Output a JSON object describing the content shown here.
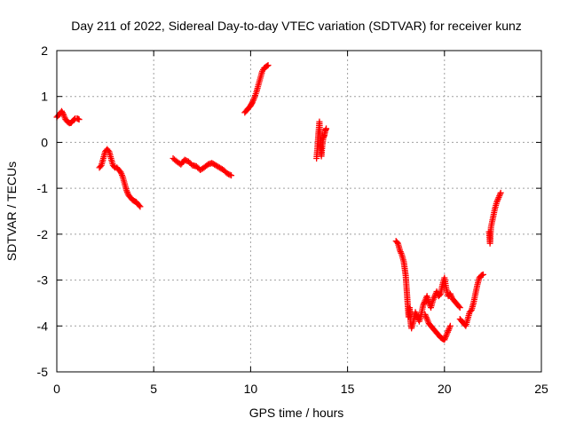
{
  "chart_data": {
    "type": "scatter",
    "title": "Day 211 of 2022, Sidereal Day-to-day VTEC variation (SDTVAR) for receiver kunz",
    "xlabel": "GPS time / hours",
    "ylabel": "SDTVAR / TECUs",
    "xlim": [
      0,
      25
    ],
    "ylim": [
      -5,
      2
    ],
    "xticks": [
      "0",
      "5",
      "10",
      "15",
      "20",
      "25"
    ],
    "yticks": [
      "-5",
      "-4",
      "-3",
      "-2",
      "-1",
      "0",
      "1",
      "2"
    ],
    "grid": true,
    "legend": "none",
    "marker": "plus",
    "color": "#ff0000",
    "segments": [
      [
        [
          0.0,
          0.55
        ],
        [
          0.15,
          0.62
        ],
        [
          0.25,
          0.68
        ],
        [
          0.35,
          0.6
        ],
        [
          0.45,
          0.5
        ],
        [
          0.55,
          0.45
        ],
        [
          0.65,
          0.42
        ],
        [
          0.75,
          0.43
        ],
        [
          0.85,
          0.48
        ],
        [
          0.95,
          0.52
        ],
        [
          1.05,
          0.52
        ],
        [
          1.15,
          0.5
        ]
      ],
      [
        [
          2.2,
          -0.55
        ],
        [
          2.3,
          -0.5
        ],
        [
          2.4,
          -0.35
        ],
        [
          2.5,
          -0.2
        ],
        [
          2.6,
          -0.15
        ],
        [
          2.7,
          -0.2
        ],
        [
          2.8,
          -0.35
        ],
        [
          2.9,
          -0.5
        ],
        [
          3.0,
          -0.55
        ],
        [
          3.1,
          -0.55
        ],
        [
          3.2,
          -0.6
        ],
        [
          3.3,
          -0.65
        ],
        [
          3.4,
          -0.75
        ],
        [
          3.5,
          -0.9
        ],
        [
          3.6,
          -1.05
        ],
        [
          3.7,
          -1.15
        ],
        [
          3.8,
          -1.2
        ],
        [
          3.9,
          -1.25
        ],
        [
          4.0,
          -1.28
        ],
        [
          4.1,
          -1.3
        ],
        [
          4.2,
          -1.35
        ],
        [
          4.3,
          -1.4
        ]
      ],
      [
        [
          6.0,
          -0.35
        ],
        [
          6.2,
          -0.42
        ],
        [
          6.4,
          -0.48
        ],
        [
          6.6,
          -0.38
        ],
        [
          6.8,
          -0.42
        ],
        [
          7.0,
          -0.5
        ],
        [
          7.2,
          -0.52
        ],
        [
          7.4,
          -0.6
        ],
        [
          7.6,
          -0.55
        ],
        [
          7.8,
          -0.48
        ],
        [
          8.0,
          -0.45
        ],
        [
          8.2,
          -0.5
        ],
        [
          8.4,
          -0.55
        ],
        [
          8.6,
          -0.6
        ],
        [
          8.8,
          -0.68
        ],
        [
          9.0,
          -0.72
        ]
      ],
      [
        [
          9.7,
          0.65
        ],
        [
          9.8,
          0.7
        ],
        [
          9.9,
          0.75
        ],
        [
          10.0,
          0.8
        ],
        [
          10.1,
          0.88
        ],
        [
          10.2,
          0.98
        ],
        [
          10.3,
          1.1
        ],
        [
          10.4,
          1.25
        ],
        [
          10.5,
          1.4
        ],
        [
          10.6,
          1.55
        ],
        [
          10.7,
          1.62
        ],
        [
          10.8,
          1.65
        ],
        [
          10.9,
          1.68
        ]
      ],
      [
        [
          13.4,
          -0.35
        ],
        [
          13.45,
          -0.1
        ],
        [
          13.5,
          0.2
        ],
        [
          13.55,
          0.45
        ],
        [
          13.6,
          0.0
        ],
        [
          13.65,
          -0.3
        ],
        [
          13.7,
          -0.05
        ],
        [
          13.75,
          0.1
        ],
        [
          13.8,
          0.15
        ],
        [
          13.85,
          0.25
        ],
        [
          13.9,
          0.3
        ]
      ],
      [
        [
          17.5,
          -2.15
        ],
        [
          17.6,
          -2.2
        ],
        [
          17.7,
          -2.35
        ],
        [
          17.8,
          -2.45
        ],
        [
          17.9,
          -2.6
        ],
        [
          18.0,
          -2.9
        ],
        [
          18.05,
          -3.2
        ],
        [
          18.1,
          -3.5
        ],
        [
          18.15,
          -3.8
        ],
        [
          18.2,
          -3.6
        ],
        [
          18.25,
          -3.9
        ],
        [
          18.3,
          -4.05
        ],
        [
          18.4,
          -3.9
        ],
        [
          18.5,
          -3.7
        ],
        [
          18.6,
          -3.8
        ],
        [
          18.7,
          -3.9
        ],
        [
          18.8,
          -3.75
        ],
        [
          18.9,
          -3.55
        ],
        [
          19.0,
          -3.45
        ],
        [
          19.1,
          -3.35
        ],
        [
          19.2,
          -3.5
        ],
        [
          19.3,
          -3.6
        ],
        [
          19.4,
          -3.45
        ],
        [
          19.5,
          -3.35
        ],
        [
          19.6,
          -3.25
        ],
        [
          19.7,
          -3.35
        ],
        [
          19.8,
          -3.3
        ],
        [
          19.9,
          -3.1
        ],
        [
          20.0,
          -2.95
        ],
        [
          20.1,
          -3.2
        ],
        [
          20.2,
          -3.35
        ],
        [
          20.3,
          -3.3
        ],
        [
          20.4,
          -3.4
        ],
        [
          20.5,
          -3.45
        ],
        [
          20.6,
          -3.5
        ],
        [
          20.7,
          -3.55
        ],
        [
          20.8,
          -3.6
        ]
      ],
      [
        [
          19.0,
          -3.75
        ],
        [
          19.1,
          -3.85
        ],
        [
          19.2,
          -3.95
        ],
        [
          19.3,
          -4.0
        ],
        [
          19.4,
          -4.05
        ],
        [
          19.5,
          -4.1
        ],
        [
          19.6,
          -4.15
        ],
        [
          19.7,
          -4.2
        ],
        [
          19.8,
          -4.25
        ],
        [
          19.9,
          -4.28
        ],
        [
          20.0,
          -4.3
        ],
        [
          20.1,
          -4.2
        ],
        [
          20.2,
          -4.1
        ],
        [
          20.3,
          -4.0
        ]
      ],
      [
        [
          20.8,
          -3.85
        ],
        [
          20.9,
          -3.9
        ],
        [
          21.0,
          -3.95
        ],
        [
          21.1,
          -4.0
        ],
        [
          21.2,
          -3.85
        ],
        [
          21.3,
          -3.7
        ],
        [
          21.4,
          -3.65
        ],
        [
          21.5,
          -3.5
        ],
        [
          21.6,
          -3.3
        ],
        [
          21.7,
          -3.1
        ],
        [
          21.8,
          -2.95
        ],
        [
          21.9,
          -2.9
        ],
        [
          22.0,
          -2.88
        ]
      ],
      [
        [
          22.3,
          -1.95
        ],
        [
          22.35,
          -2.2
        ],
        [
          22.4,
          -1.85
        ],
        [
          22.5,
          -1.65
        ],
        [
          22.6,
          -1.45
        ],
        [
          22.7,
          -1.3
        ],
        [
          22.8,
          -1.2
        ],
        [
          22.9,
          -1.1
        ]
      ]
    ]
  }
}
